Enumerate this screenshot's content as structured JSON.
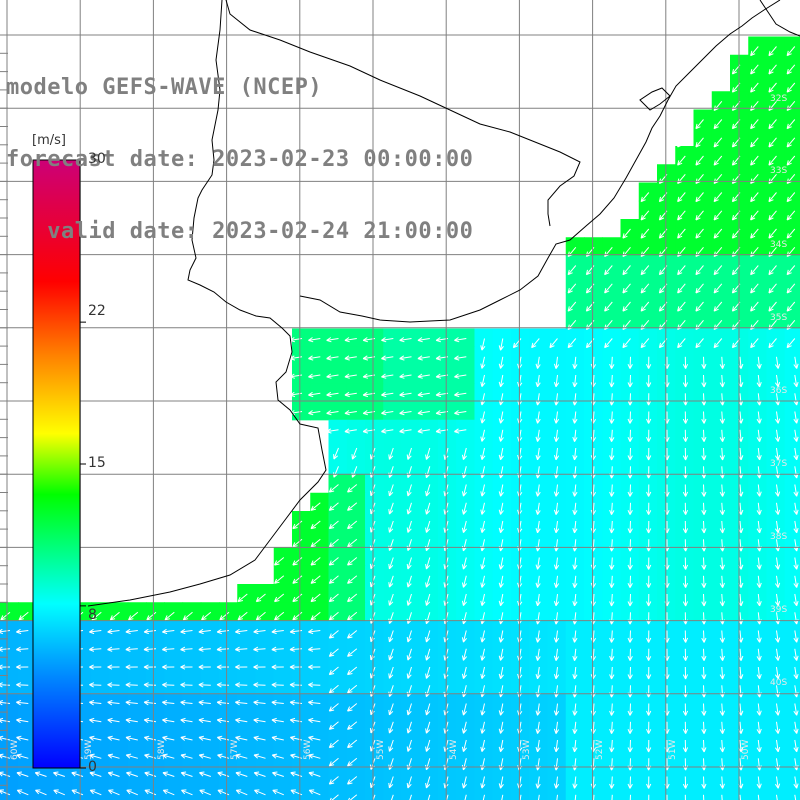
{
  "title": {
    "line1": "modelo GEFS-WAVE (NCEP)",
    "line2": "forecast date: 2023-02-23 00:00:00",
    "line3": "   valid date: 2023-02-24 21:00:00"
  },
  "colorbar": {
    "unit": "[m/s]",
    "ticks": [
      "30",
      "22",
      "15",
      "8",
      "0"
    ],
    "tick_values": [
      30,
      22,
      15,
      8,
      0
    ],
    "min": 0,
    "max": 30,
    "colors": [
      "#0000ff",
      "#0088ff",
      "#00ffff",
      "#00ff00",
      "#ffff00",
      "#ff8000",
      "#ff0000",
      "#cc0077"
    ]
  },
  "map": {
    "land_color": "#ffffff",
    "coastline_color": "#000000",
    "grid_color": "#808080",
    "arrow_color": "#ffffff",
    "lat_labels": [
      "32S",
      "33S",
      "34S",
      "35S",
      "36S",
      "37S",
      "38S",
      "39S",
      "40S"
    ],
    "lon_labels": [
      "60W",
      "59W",
      "58W",
      "57W",
      "56W",
      "55W",
      "54W",
      "53W",
      "52W",
      "51W",
      "50W"
    ]
  },
  "chart_data": {
    "type": "heatmap",
    "variable": "wind speed with direction arrows",
    "unit": "m/s",
    "value_range": [
      0,
      30
    ],
    "regions": [
      {
        "region": "coast north of Rio de la Plata / Uruguay coast",
        "speed": 12,
        "direction": "from NE"
      },
      {
        "region": "Rio de la Plata estuary",
        "speed": 10,
        "direction": "from E"
      },
      {
        "region": "open ocean center",
        "speed": 8,
        "direction": "from NNE"
      },
      {
        "region": "off Buenos Aires province coast near 37-38S",
        "speed": 12,
        "direction": "from NE"
      },
      {
        "region": "southwest ocean 39-40S",
        "speed": 5,
        "direction": "from E/N"
      }
    ]
  }
}
